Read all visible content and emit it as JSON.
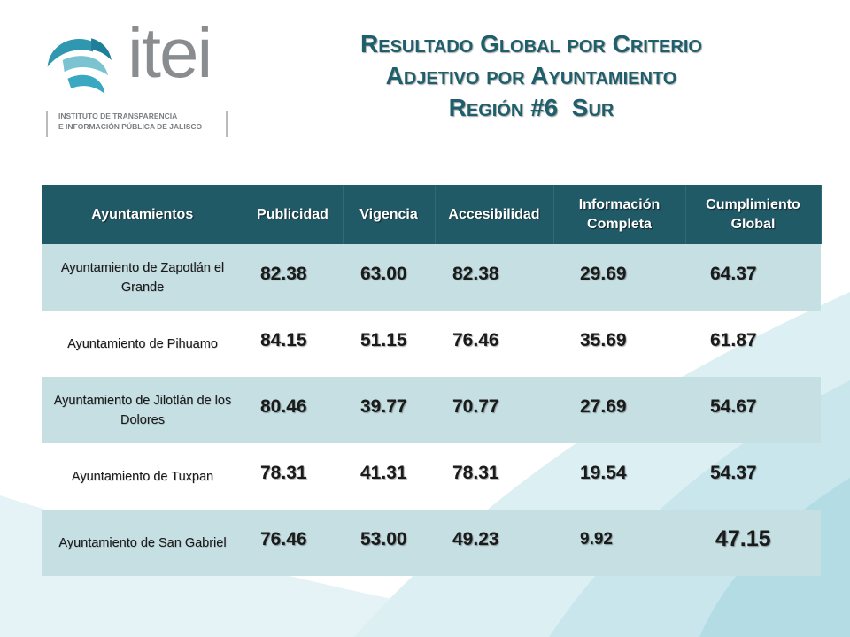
{
  "logo": {
    "wordmark": "itei",
    "subtitle_line1": "INSTITUTO DE TRANSPARENCIA",
    "subtitle_line2": "E INFORMACIÓN PÚBLICA DE JALISCO"
  },
  "title": {
    "line1": "Resultado Global por Criterio",
    "line2": "Adjetivo por Ayuntamiento",
    "line3": "Región #6  Sur"
  },
  "colors": {
    "header_bg": "#215a67",
    "row_shade": "#c5dfe3",
    "title_text": "#1e5f6b"
  },
  "table": {
    "headers": [
      "Ayuntamientos",
      "Publicidad",
      "Vigencia",
      "Accesibilidad",
      "Información Completa",
      "Cumplimiento Global"
    ],
    "rows": [
      {
        "name": "Ayuntamiento de Zapotlán el Grande",
        "values": [
          "82.38",
          "63.00",
          "82.38",
          "29.69",
          "64.37"
        ]
      },
      {
        "name": "Ayuntamiento de Pihuamo",
        "values": [
          "84.15",
          "51.15",
          "76.46",
          "35.69",
          "61.87"
        ]
      },
      {
        "name": "Ayuntamiento de Jilotlán de los Dolores",
        "values": [
          "80.46",
          "39.77",
          "70.77",
          "27.69",
          "54.67"
        ]
      },
      {
        "name": "Ayuntamiento de Tuxpan",
        "values": [
          "78.31",
          "41.31",
          "78.31",
          "19.54",
          "54.37"
        ]
      },
      {
        "name": "Ayuntamiento de San Gabriel",
        "values": [
          "76.46",
          "53.00",
          "49.23",
          "9.92",
          "47.15"
        ]
      }
    ]
  }
}
